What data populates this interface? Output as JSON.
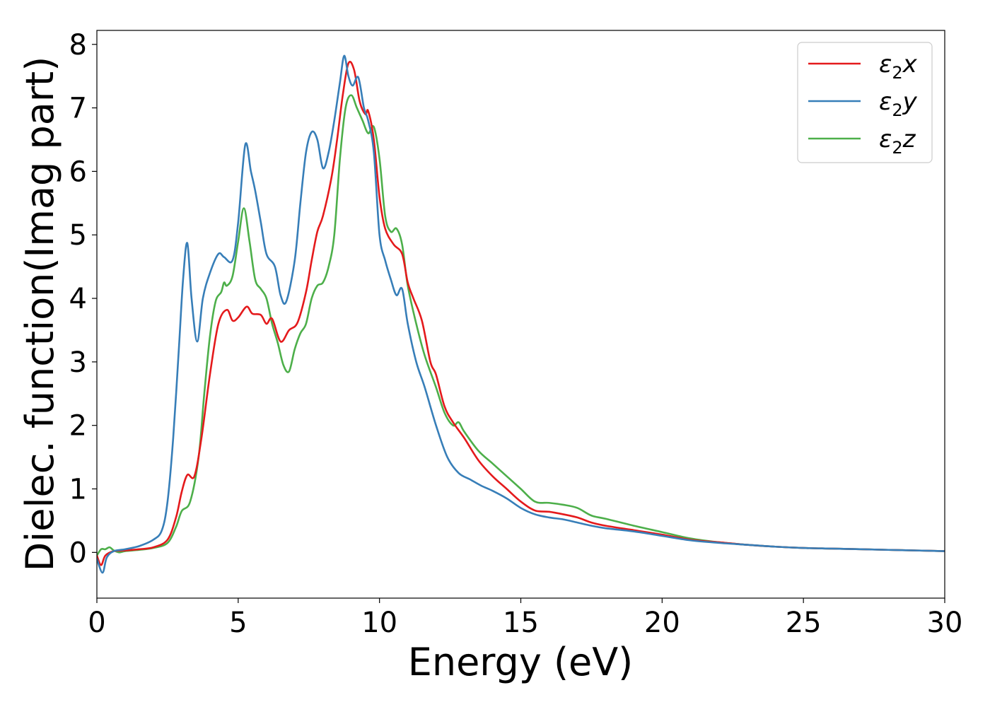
{
  "chart_data": {
    "type": "line",
    "title": "",
    "xlabel": "Energy (eV)",
    "ylabel": "Dielec. function(Imag part)",
    "xlim": [
      0,
      30
    ],
    "ylim": [
      -0.72,
      8.22
    ],
    "xticks": [
      0,
      5,
      10,
      15,
      20,
      25,
      30
    ],
    "yticks": [
      0,
      1,
      2,
      3,
      4,
      5,
      6,
      7,
      8
    ],
    "grid": false,
    "legend_position": "top-right",
    "series": [
      {
        "name": "ε2x",
        "label_base": "ε",
        "label_sub": "2",
        "label_var": "x",
        "color": "#e41a1c",
        "x": [
          0,
          0.15,
          0.3,
          0.6,
          1.0,
          1.5,
          2.0,
          2.5,
          2.8,
          3.0,
          3.2,
          3.45,
          3.7,
          4.0,
          4.3,
          4.6,
          4.8,
          5.0,
          5.3,
          5.5,
          5.8,
          6.0,
          6.2,
          6.5,
          6.8,
          7.1,
          7.4,
          7.6,
          7.8,
          8.0,
          8.3,
          8.5,
          8.7,
          8.9,
          9.1,
          9.3,
          9.5,
          9.6,
          9.8,
          10.0,
          10.2,
          10.5,
          10.8,
          11.0,
          11.2,
          11.5,
          11.8,
          12.0,
          12.3,
          12.6,
          13.0,
          13.5,
          14.0,
          14.5,
          15.0,
          15.5,
          16.0,
          16.5,
          17.0,
          17.5,
          18.0,
          19.0,
          20.0,
          21.0,
          22.0,
          23.0,
          24.0,
          25.0,
          26.0,
          27.0,
          28.0,
          29.0,
          30.0
        ],
        "values": [
          -0.05,
          -0.2,
          -0.05,
          0.02,
          0.03,
          0.05,
          0.08,
          0.2,
          0.55,
          0.95,
          1.22,
          1.2,
          1.8,
          2.8,
          3.6,
          3.82,
          3.65,
          3.7,
          3.87,
          3.76,
          3.74,
          3.6,
          3.68,
          3.32,
          3.5,
          3.62,
          4.1,
          4.6,
          5.05,
          5.3,
          5.9,
          6.5,
          7.2,
          7.7,
          7.6,
          7.1,
          6.9,
          6.95,
          6.5,
          5.6,
          5.1,
          4.85,
          4.7,
          4.25,
          4.0,
          3.65,
          3.0,
          2.8,
          2.3,
          2.05,
          1.8,
          1.45,
          1.2,
          1.0,
          0.8,
          0.66,
          0.64,
          0.6,
          0.55,
          0.47,
          0.42,
          0.35,
          0.28,
          0.2,
          0.16,
          0.12,
          0.09,
          0.07,
          0.06,
          0.05,
          0.04,
          0.03,
          0.02
        ]
      },
      {
        "name": "ε2y",
        "label_base": "ε",
        "label_sub": "2",
        "label_var": "y",
        "color": "#377eb8",
        "x": [
          0,
          0.2,
          0.35,
          0.6,
          1.0,
          1.5,
          2.0,
          2.3,
          2.5,
          2.7,
          2.9,
          3.05,
          3.2,
          3.35,
          3.55,
          3.75,
          4.0,
          4.3,
          4.5,
          4.8,
          5.0,
          5.25,
          5.45,
          5.6,
          5.8,
          6.0,
          6.3,
          6.5,
          6.7,
          7.0,
          7.2,
          7.4,
          7.6,
          7.8,
          8.0,
          8.2,
          8.4,
          8.6,
          8.75,
          8.9,
          9.05,
          9.25,
          9.45,
          9.6,
          9.8,
          10.0,
          10.2,
          10.4,
          10.6,
          10.8,
          11.0,
          11.3,
          11.6,
          12.0,
          12.4,
          12.8,
          13.2,
          13.6,
          14.0,
          14.5,
          15.0,
          15.5,
          16.0,
          16.5,
          17.0,
          17.5,
          18.0,
          19.0,
          20.0,
          21.0,
          22.0,
          23.0,
          24.0,
          25.0,
          26.0,
          27.0,
          28.0,
          29.0,
          30.0
        ],
        "values": [
          -0.1,
          -0.32,
          -0.08,
          0.02,
          0.05,
          0.1,
          0.2,
          0.35,
          0.8,
          1.8,
          3.2,
          4.3,
          4.87,
          4.0,
          3.32,
          4.0,
          4.4,
          4.7,
          4.65,
          4.6,
          5.2,
          6.42,
          6.0,
          5.7,
          5.2,
          4.7,
          4.5,
          4.05,
          3.95,
          4.6,
          5.5,
          6.3,
          6.62,
          6.5,
          6.05,
          6.3,
          6.8,
          7.4,
          7.82,
          7.5,
          7.35,
          7.48,
          7.0,
          6.8,
          6.3,
          5.0,
          4.6,
          4.3,
          4.05,
          4.15,
          3.6,
          3.0,
          2.6,
          2.0,
          1.5,
          1.25,
          1.15,
          1.05,
          0.97,
          0.85,
          0.7,
          0.6,
          0.55,
          0.52,
          0.47,
          0.42,
          0.38,
          0.33,
          0.26,
          0.19,
          0.15,
          0.12,
          0.09,
          0.07,
          0.06,
          0.05,
          0.04,
          0.03,
          0.02
        ]
      },
      {
        "name": "ε2z",
        "label_base": "ε",
        "label_sub": "2",
        "label_var": "z",
        "color": "#4daf4a",
        "x": [
          0,
          0.15,
          0.3,
          0.45,
          0.6,
          0.8,
          1.0,
          1.5,
          2.0,
          2.5,
          2.8,
          3.0,
          3.3,
          3.6,
          3.8,
          4.0,
          4.2,
          4.4,
          4.5,
          4.6,
          4.8,
          5.0,
          5.2,
          5.4,
          5.6,
          5.8,
          6.0,
          6.2,
          6.4,
          6.6,
          6.8,
          7.0,
          7.2,
          7.4,
          7.6,
          7.8,
          8.0,
          8.2,
          8.4,
          8.6,
          8.8,
          9.0,
          9.2,
          9.4,
          9.6,
          9.8,
          10.0,
          10.2,
          10.4,
          10.6,
          10.8,
          11.0,
          11.3,
          11.6,
          12.0,
          12.3,
          12.6,
          12.8,
          13.0,
          13.5,
          14.0,
          14.5,
          15.0,
          15.5,
          16.0,
          16.5,
          17.0,
          17.5,
          18.0,
          19.0,
          20.0,
          21.0,
          22.0,
          23.0,
          24.0,
          25.0,
          26.0,
          27.0,
          28.0,
          29.0,
          30.0
        ],
        "values": [
          -0.05,
          0.05,
          0.05,
          0.08,
          0.03,
          0.0,
          0.02,
          0.04,
          0.07,
          0.15,
          0.4,
          0.65,
          0.8,
          1.5,
          2.5,
          3.4,
          3.95,
          4.1,
          4.25,
          4.2,
          4.35,
          4.9,
          5.42,
          4.9,
          4.3,
          4.15,
          4.0,
          3.6,
          3.3,
          2.95,
          2.85,
          3.2,
          3.45,
          3.6,
          4.0,
          4.2,
          4.25,
          4.5,
          5.0,
          6.2,
          7.0,
          7.2,
          7.0,
          6.8,
          6.6,
          6.7,
          6.2,
          5.3,
          5.05,
          5.1,
          4.85,
          4.2,
          3.6,
          3.1,
          2.6,
          2.2,
          2.0,
          2.05,
          1.9,
          1.6,
          1.4,
          1.2,
          1.0,
          0.8,
          0.78,
          0.75,
          0.7,
          0.58,
          0.53,
          0.42,
          0.32,
          0.22,
          0.16,
          0.12,
          0.09,
          0.07,
          0.06,
          0.05,
          0.04,
          0.03,
          0.02
        ]
      }
    ]
  }
}
